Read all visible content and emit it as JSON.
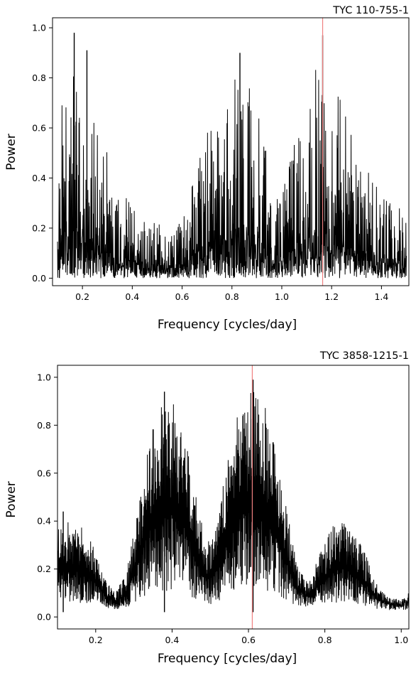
{
  "chart_data": [
    {
      "type": "line",
      "title": "TYC 110-755-1",
      "xlabel": "Frequency [cycles/day]",
      "ylabel": "Power",
      "xlim": [
        0.08,
        1.51
      ],
      "ylim": [
        -0.03,
        1.04
      ],
      "xticks": [
        0.2,
        0.4,
        0.6,
        0.8,
        1.0,
        1.2,
        1.4
      ],
      "xtick_labels": [
        "0.2",
        "0.4",
        "0.6",
        "0.8",
        "1.0",
        "1.2",
        "1.4"
      ],
      "yticks": [
        0.0,
        0.2,
        0.4,
        0.6,
        0.8,
        1.0
      ],
      "ytick_labels": [
        "0.0",
        "0.2",
        "0.4",
        "0.6",
        "0.8",
        "1.0"
      ],
      "marker_frequency": 1.164,
      "marker_color": "#f08080",
      "line_color": "#000000",
      "envelope": {
        "x": [
          0.1,
          0.13,
          0.16,
          0.2,
          0.25,
          0.3,
          0.35,
          0.4,
          0.45,
          0.5,
          0.55,
          0.58,
          0.62,
          0.66,
          0.7,
          0.75,
          0.8,
          0.84,
          0.88,
          0.92,
          0.96,
          1.0,
          1.04,
          1.08,
          1.12,
          1.16,
          1.2,
          1.25,
          1.3,
          1.35,
          1.4,
          1.45,
          1.5
        ],
        "y": [
          0.6,
          0.8,
          0.85,
          0.8,
          0.62,
          0.5,
          0.38,
          0.3,
          0.25,
          0.22,
          0.2,
          0.2,
          0.3,
          0.45,
          0.6,
          0.72,
          0.8,
          0.82,
          0.75,
          0.6,
          0.42,
          0.35,
          0.5,
          0.7,
          0.82,
          0.85,
          0.78,
          0.7,
          0.55,
          0.42,
          0.35,
          0.3,
          0.28
        ]
      },
      "peaks": [
        {
          "x": 0.167,
          "y": 0.98
        },
        {
          "x": 0.218,
          "y": 0.91
        },
        {
          "x": 0.832,
          "y": 0.9
        },
        {
          "x": 1.164,
          "y": 0.97
        }
      ]
    },
    {
      "type": "line",
      "title": "TYC 3858-1215-1",
      "xlabel": "Frequency [cycles/day]",
      "ylabel": "Power",
      "xlim": [
        0.1,
        1.02
      ],
      "ylim": [
        -0.05,
        1.05
      ],
      "xticks": [
        0.2,
        0.4,
        0.6,
        0.8,
        1.0
      ],
      "xtick_labels": [
        "0.2",
        "0.4",
        "0.6",
        "0.8",
        "1.0"
      ],
      "yticks": [
        0.0,
        0.2,
        0.4,
        0.6,
        0.8,
        1.0
      ],
      "ytick_labels": [
        "0.0",
        "0.2",
        "0.4",
        "0.6",
        "0.8",
        "1.0"
      ],
      "marker_frequency": 0.61,
      "marker_color": "#f08080",
      "line_color": "#000000",
      "envelope": {
        "x": [
          0.1,
          0.13,
          0.16,
          0.19,
          0.22,
          0.25,
          0.28,
          0.31,
          0.34,
          0.37,
          0.4,
          0.43,
          0.46,
          0.49,
          0.52,
          0.55,
          0.58,
          0.61,
          0.64,
          0.67,
          0.7,
          0.73,
          0.76,
          0.79,
          0.82,
          0.85,
          0.88,
          0.91,
          0.94,
          0.97,
          1.0,
          1.02
        ],
        "y": [
          0.38,
          0.4,
          0.38,
          0.32,
          0.18,
          0.1,
          0.18,
          0.45,
          0.75,
          0.88,
          0.9,
          0.8,
          0.55,
          0.3,
          0.4,
          0.72,
          0.9,
          0.96,
          0.9,
          0.72,
          0.45,
          0.2,
          0.15,
          0.28,
          0.38,
          0.4,
          0.36,
          0.25,
          0.12,
          0.08,
          0.08,
          0.1
        ]
      },
      "peaks": [
        {
          "x": 0.38,
          "y": 0.94
        },
        {
          "x": 0.612,
          "y": 0.99
        },
        {
          "x": 0.115,
          "y": 0.44
        }
      ]
    }
  ]
}
